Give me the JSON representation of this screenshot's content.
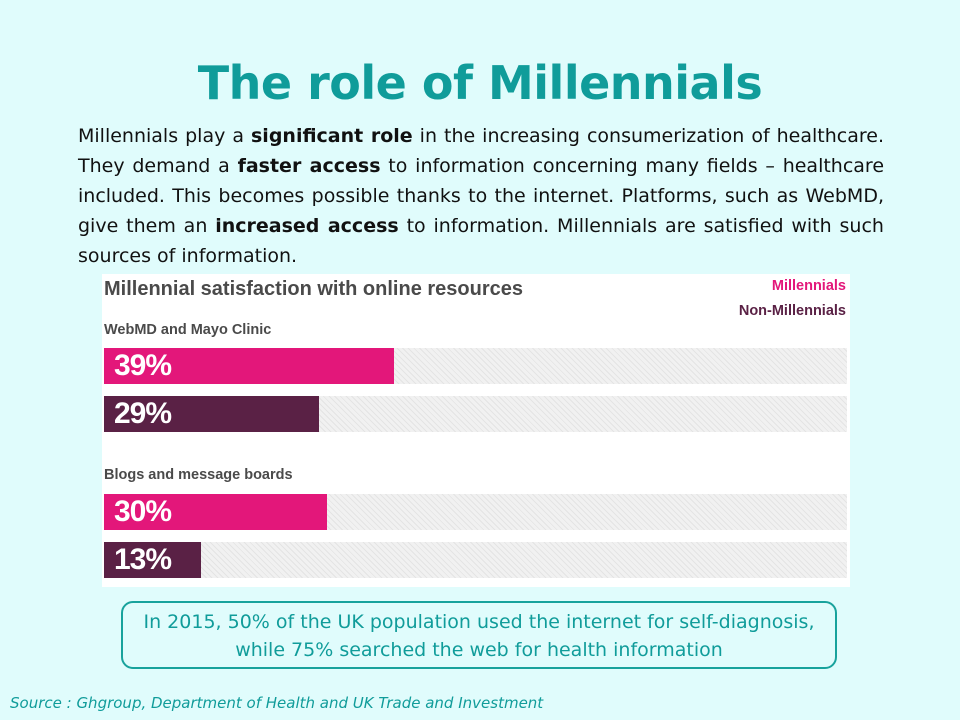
{
  "title": "The role of Millennials",
  "body": {
    "p1": "Millennials play a ",
    "b1": "significant role",
    "p2": " in the increasing consumerization of healthcare. They demand a ",
    "b2": "faster access",
    "p3": " to information concerning many fields – healthcare included. This becomes possible thanks to the internet. Platforms, such as WebMD, give them an ",
    "b3": "increased access",
    "p4": " to information. Millennials are satisfied with such sources of information."
  },
  "chart_data": {
    "type": "bar",
    "title": "Millennial satisfaction with online resources",
    "legend": [
      "Millennials",
      "Non-Millennials"
    ],
    "legend_position": "top-right",
    "colors": {
      "Millennials": "#e3177a",
      "Non-Millennials": "#5a2145"
    },
    "xlim": [
      0,
      100
    ],
    "categories": [
      "WebMD and Mayo Clinic",
      "Blogs and message boards"
    ],
    "series": [
      {
        "name": "Millennials",
        "values": [
          39,
          30
        ],
        "labels": [
          "39%",
          "30%"
        ]
      },
      {
        "name": "Non-Millennials",
        "values": [
          29,
          13
        ],
        "labels": [
          "29%",
          "13%"
        ]
      }
    ]
  },
  "callout": {
    "line1": "In 2015, 50% of the UK population used the internet for self-diagnosis,",
    "line2": "while 75% searched the web for health information"
  },
  "source": "Source : Ghgroup, Department of Health and UK Trade and Investment",
  "colors": {
    "accent": "#109c9a",
    "background": "#e0fcfc"
  }
}
